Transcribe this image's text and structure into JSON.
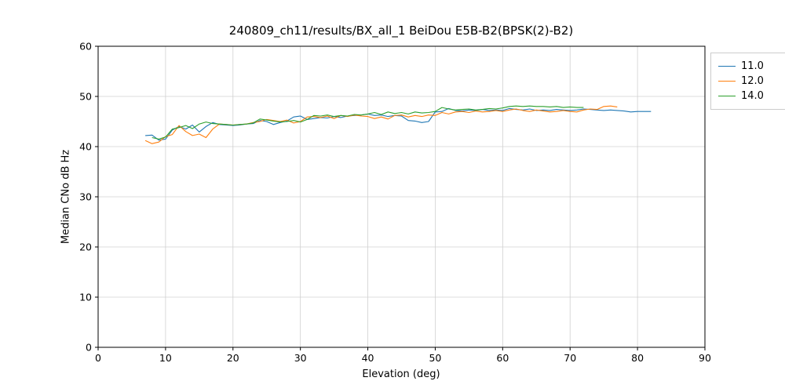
{
  "chart_data": {
    "type": "line",
    "title": "240809_ch11/results/BX_all_1 BeiDou E5B-B2(BPSK(2)-B2)",
    "xlabel": "Elevation (deg)",
    "ylabel": "Median CNo dB Hz",
    "xlim": [
      0,
      90
    ],
    "ylim": [
      0,
      60
    ],
    "xticks": [
      0,
      10,
      20,
      30,
      40,
      50,
      60,
      70,
      80,
      90
    ],
    "yticks": [
      0,
      10,
      20,
      30,
      40,
      50,
      60
    ],
    "grid": true,
    "legend_position": "upper right outside",
    "series": [
      {
        "name": "11.0",
        "color": "#1f77b4",
        "x": [
          7,
          8,
          9,
          10,
          11,
          12,
          13,
          14,
          15,
          16,
          17,
          18,
          19,
          20,
          21,
          22,
          23,
          24,
          25,
          26,
          27,
          28,
          29,
          30,
          31,
          32,
          33,
          34,
          35,
          36,
          37,
          38,
          39,
          40,
          41,
          42,
          43,
          44,
          45,
          46,
          47,
          48,
          49,
          50,
          51,
          52,
          53,
          54,
          55,
          56,
          57,
          58,
          59,
          60,
          61,
          62,
          63,
          64,
          65,
          66,
          67,
          68,
          69,
          70,
          71,
          72,
          73,
          74,
          75,
          76,
          77,
          78,
          79,
          80,
          81,
          82
        ],
        "y": [
          42.2,
          42.3,
          41.3,
          41.5,
          43.3,
          44.0,
          43.5,
          44.3,
          42.9,
          44.0,
          44.8,
          44.4,
          44.3,
          44.2,
          44.3,
          44.5,
          44.6,
          45.2,
          45.0,
          44.4,
          44.8,
          45.1,
          45.9,
          46.1,
          45.4,
          45.6,
          45.8,
          45.7,
          46.0,
          45.8,
          46.1,
          46.2,
          46.3,
          46.5,
          46.2,
          46.3,
          46.0,
          46.2,
          46.1,
          45.2,
          45.1,
          44.8,
          45.0,
          46.9,
          47.0,
          47.6,
          47.2,
          47.1,
          47.3,
          47.2,
          47.4,
          47.2,
          47.3,
          47.2,
          47.6,
          47.4,
          47.3,
          47.5,
          47.2,
          47.3,
          47.2,
          47.4,
          47.3,
          47.2,
          47.3,
          47.5,
          47.4,
          47.3,
          47.2,
          47.3,
          47.2,
          47.1,
          46.9,
          47.0,
          47.0,
          47.0
        ]
      },
      {
        "name": "12.0",
        "color": "#ff7f0e",
        "x": [
          7,
          8,
          9,
          10,
          11,
          12,
          13,
          14,
          15,
          16,
          17,
          18,
          19,
          20,
          21,
          22,
          23,
          24,
          25,
          26,
          27,
          28,
          29,
          30,
          31,
          32,
          33,
          34,
          35,
          36,
          37,
          38,
          39,
          40,
          41,
          42,
          43,
          44,
          45,
          46,
          47,
          48,
          49,
          50,
          51,
          52,
          53,
          54,
          55,
          56,
          57,
          58,
          59,
          60,
          61,
          62,
          63,
          64,
          65,
          66,
          67,
          68,
          69,
          70,
          71,
          72,
          73,
          74,
          75,
          76,
          77
        ],
        "y": [
          41.2,
          40.6,
          40.9,
          42.0,
          42.4,
          44.2,
          43.0,
          42.2,
          42.5,
          41.8,
          43.5,
          44.5,
          44.4,
          44.3,
          44.4,
          44.5,
          44.8,
          45.0,
          45.4,
          45.2,
          45.0,
          45.3,
          44.7,
          45.0,
          45.9,
          46.0,
          45.8,
          46.1,
          45.6,
          46.2,
          46.0,
          46.3,
          46.1,
          46.0,
          45.6,
          45.9,
          45.5,
          46.2,
          46.3,
          45.9,
          46.2,
          46.0,
          46.3,
          46.2,
          46.8,
          46.5,
          46.9,
          47.0,
          46.8,
          47.1,
          46.9,
          47.0,
          47.2,
          47.0,
          47.3,
          47.5,
          47.2,
          47.0,
          47.3,
          47.1,
          46.9,
          47.0,
          47.2,
          47.0,
          46.9,
          47.3,
          47.5,
          47.4,
          48.0,
          48.1,
          47.9
        ]
      },
      {
        "name": "14.0",
        "color": "#2ca02c",
        "x": [
          8,
          9,
          10,
          11,
          12,
          13,
          14,
          15,
          16,
          17,
          18,
          19,
          20,
          21,
          22,
          23,
          24,
          25,
          26,
          27,
          28,
          29,
          30,
          31,
          32,
          33,
          34,
          35,
          36,
          37,
          38,
          39,
          40,
          41,
          42,
          43,
          44,
          45,
          46,
          47,
          48,
          49,
          50,
          51,
          52,
          53,
          54,
          55,
          56,
          57,
          58,
          59,
          60,
          61,
          62,
          63,
          64,
          65,
          66,
          67,
          68,
          69,
          70,
          71,
          72
        ],
        "y": [
          41.8,
          41.5,
          41.9,
          43.5,
          43.8,
          44.2,
          43.6,
          44.5,
          44.9,
          44.6,
          44.5,
          44.4,
          44.3,
          44.4,
          44.5,
          44.7,
          45.5,
          45.3,
          45.1,
          44.9,
          45.0,
          45.2,
          44.9,
          45.4,
          46.2,
          46.1,
          46.3,
          46.0,
          46.2,
          46.1,
          46.4,
          46.3,
          46.5,
          46.8,
          46.4,
          46.9,
          46.6,
          46.8,
          46.5,
          46.9,
          46.7,
          46.8,
          47.0,
          47.8,
          47.5,
          47.3,
          47.4,
          47.5,
          47.3,
          47.4,
          47.6,
          47.5,
          47.7,
          48.0,
          48.1,
          48.0,
          48.1,
          48.0,
          48.0,
          47.9,
          48.0,
          47.8,
          47.9,
          47.8,
          47.8
        ]
      }
    ]
  }
}
